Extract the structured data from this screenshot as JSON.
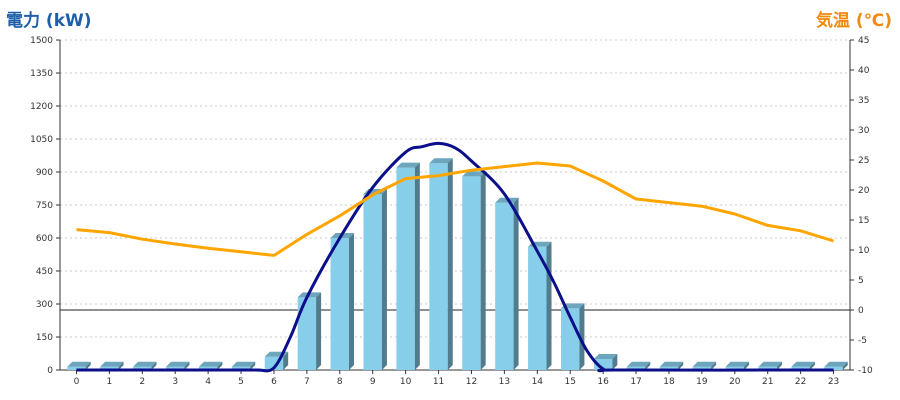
{
  "chart_data": {
    "type": "bar",
    "left_axis_title": "電力 (kW)",
    "right_axis_title": "気温 (℃)",
    "x": [
      "0",
      "1",
      "2",
      "3",
      "4",
      "5",
      "6",
      "7",
      "8",
      "9",
      "10",
      "11",
      "12",
      "13",
      "14",
      "15",
      "16",
      "17",
      "18",
      "19",
      "20",
      "21",
      "22",
      "23"
    ],
    "y_left": {
      "min": 0,
      "max": 1500,
      "ticks": [
        0,
        150,
        300,
        450,
        600,
        750,
        900,
        1050,
        1200,
        1350,
        1500
      ]
    },
    "y_right": {
      "min": -10,
      "max": 45,
      "ticks": [
        -10,
        -5,
        0,
        5,
        10,
        15,
        20,
        25,
        30,
        35,
        40,
        45
      ]
    },
    "grid": true,
    "series": [
      {
        "kind": "bar",
        "axis": "left",
        "color": "#87ceeb",
        "values": [
          15,
          15,
          15,
          15,
          15,
          15,
          60,
          330,
          600,
          800,
          920,
          940,
          880,
          760,
          560,
          280,
          50,
          15,
          15,
          15,
          15,
          15,
          15,
          15
        ]
      },
      {
        "kind": "line",
        "axis": "left",
        "color": "#0b0f8a",
        "points": [
          [
            0,
            0
          ],
          [
            5,
            0
          ],
          [
            5.5,
            0
          ],
          [
            6,
            10
          ],
          [
            6.5,
            150
          ],
          [
            7,
            330
          ],
          [
            8,
            600
          ],
          [
            9,
            830
          ],
          [
            10,
            990
          ],
          [
            10.5,
            1015
          ],
          [
            11,
            1030
          ],
          [
            11.5,
            1010
          ],
          [
            12,
            950
          ],
          [
            13,
            800
          ],
          [
            14,
            540
          ],
          [
            14.5,
            400
          ],
          [
            15,
            240
          ],
          [
            15.5,
            90
          ],
          [
            16,
            5
          ],
          [
            16.5,
            0
          ],
          [
            23,
            0
          ]
        ]
      },
      {
        "kind": "line",
        "axis": "right",
        "color": "#ffa500",
        "values": [
          13.4,
          12.9,
          11.8,
          11.0,
          10.3,
          9.7,
          9.1,
          12.6,
          15.7,
          19.2,
          21.9,
          22.4,
          23.3,
          23.9,
          24.5,
          24.0,
          21.5,
          18.5,
          17.9,
          17.3,
          16.0,
          14.1,
          13.2,
          11.5
        ]
      }
    ]
  }
}
